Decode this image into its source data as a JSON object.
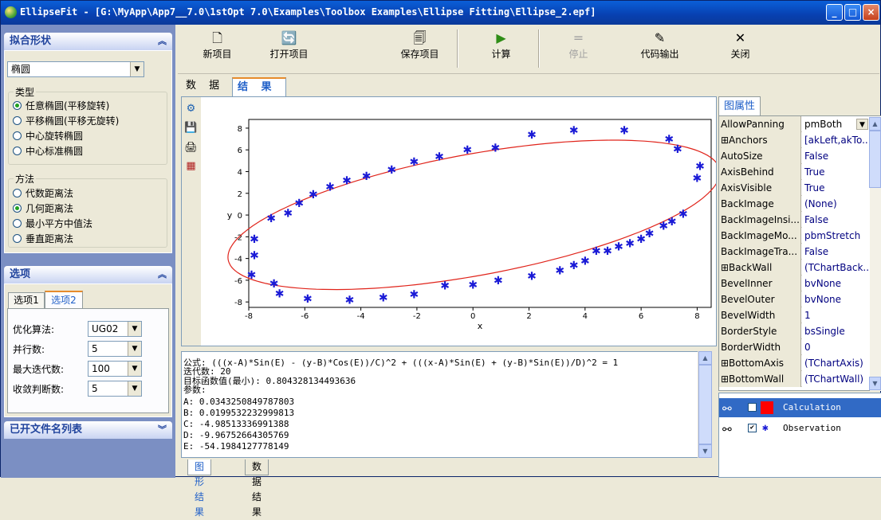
{
  "window": {
    "title": "EllipseFit - [G:\\MyApp\\App7__7.0\\1stOpt 7.0\\Examples\\Toolbox Examples\\Ellipse Fitting\\Ellipse_2.epf]",
    "controls": {
      "minimize": "_",
      "maximize": "□",
      "close": "×"
    }
  },
  "left_panel": {
    "shape_header": "拟合形状",
    "shape_value": "椭圆",
    "type_group": {
      "legend": "类型",
      "options": [
        "任意椭圆(平移旋转)",
        "平移椭圆(平移无旋转)",
        "中心旋转椭圆",
        "中心标准椭圆"
      ],
      "selected": 0
    },
    "method_group": {
      "legend": "方法",
      "options": [
        "代数距离法",
        "几何距离法",
        "最小平方中值法",
        "垂直距离法"
      ],
      "selected": 1
    },
    "options_header": "选项",
    "option_tabs": [
      "选项1",
      "选项2"
    ],
    "options": [
      {
        "label": "优化算法:",
        "value": "UG02"
      },
      {
        "label": "并行数:",
        "value": "5"
      },
      {
        "label": "最大迭代数:",
        "value": "100"
      },
      {
        "label": "收敛判断数:",
        "value": "5"
      }
    ],
    "files_header": "已开文件名列表"
  },
  "toolbar": {
    "buttons": [
      {
        "label": "新项目",
        "icon": "new-file-icon",
        "glyph": "🗋",
        "enabled": true
      },
      {
        "label": "打开项目",
        "icon": "open-project-icon",
        "glyph": "🔄",
        "enabled": true
      },
      {
        "label": "保存项目",
        "icon": "save-project-icon",
        "glyph": "🗐",
        "enabled": true
      },
      {
        "label": "计算",
        "icon": "play-icon",
        "glyph": "▶",
        "enabled": true
      },
      {
        "label": "停止",
        "icon": "stop-icon",
        "glyph": "=",
        "enabled": false
      },
      {
        "label": "代码输出",
        "icon": "edit-icon",
        "glyph": "✎",
        "enabled": true
      },
      {
        "label": "关闭",
        "icon": "close-icon",
        "glyph": "✕",
        "enabled": true
      }
    ]
  },
  "main_tabs": [
    "数 据",
    "结 果"
  ],
  "active_main_tab": 1,
  "chart_data": {
    "type": "scatter",
    "xlabel": "x",
    "ylabel": "y",
    "xlim": [
      -8,
      8.5
    ],
    "ylim": [
      -8.5,
      8.8
    ],
    "xticks": [
      -8,
      -6,
      -4,
      -2,
      0,
      2,
      4,
      6,
      8
    ],
    "yticks": [
      -8,
      -6,
      -4,
      -2,
      0,
      2,
      4,
      6,
      8
    ],
    "series": [
      {
        "name": "Calculation",
        "kind": "line",
        "color": "#e0241b",
        "ellipse": {
          "A": 0.0343250849787803,
          "B": 0.0199532232999813,
          "C": -4.98513336991388,
          "D": -9.96752664305769,
          "E": -54.1984127778149
        }
      },
      {
        "name": "Observation",
        "kind": "points",
        "color": "#1a1ad6",
        "x": [
          -7.9,
          -7.8,
          -7.1,
          -6.9,
          -5.9,
          -4.4,
          -3.2,
          -2.1,
          -1.0,
          0.0,
          0.9,
          2.1,
          3.1,
          3.6,
          4.0,
          4.4,
          4.8,
          5.2,
          5.6,
          6.0,
          6.3,
          6.8,
          7.1,
          7.5,
          8.0,
          8.1,
          7.3,
          7.0,
          5.4,
          3.6,
          2.1,
          0.8,
          -0.2,
          -1.2,
          -2.1,
          -2.9,
          -3.8,
          -4.5,
          -5.1,
          -5.7,
          -6.2,
          -6.6,
          -7.2,
          -7.8
        ],
        "y": [
          -5.5,
          -3.7,
          -6.3,
          -7.2,
          -7.7,
          -7.8,
          -7.6,
          -7.3,
          -6.5,
          -6.4,
          -6.0,
          -5.6,
          -5.1,
          -4.6,
          -4.2,
          -3.3,
          -3.3,
          -2.9,
          -2.6,
          -2.2,
          -1.7,
          -1.0,
          -0.6,
          0.1,
          3.4,
          4.5,
          6.1,
          7.0,
          7.8,
          7.8,
          7.4,
          6.2,
          6.0,
          5.4,
          4.9,
          4.2,
          3.6,
          3.2,
          2.6,
          1.9,
          1.1,
          0.2,
          -0.3,
          -2.2
        ]
      }
    ]
  },
  "results": {
    "formula": "公式: (((x-A)*Sin(E) - (y-B)*Cos(E))/C)^2 + (((x-A)*Sin(E) + (y-B)*Sin(E))/D)^2 = 1",
    "iterations": "迭代数: 20",
    "objective": "目标函数值(最小): 0.804328134493636",
    "params_title": "参数:",
    "params": [
      "A: 0.0343250849787803",
      "B: 0.0199532232999813",
      "C: -4.98513336991388",
      "D: -9.96752664305769",
      "E: -54.1984127778149"
    ]
  },
  "bottom_tabs": [
    "图形结果",
    "数据结果"
  ],
  "properties": {
    "tab": "图属性",
    "rows": [
      {
        "name": "AllowPanning",
        "value": "pmBoth"
      },
      {
        "name": "⊞Anchors",
        "value": "[akLeft,akTo..."
      },
      {
        "name": "AutoSize",
        "value": "False"
      },
      {
        "name": "AxisBehind",
        "value": "True"
      },
      {
        "name": "AxisVisible",
        "value": "True"
      },
      {
        "name": "BackImage",
        "value": "(None)"
      },
      {
        "name": "BackImageInsi...",
        "value": "False"
      },
      {
        "name": "BackImageMo...",
        "value": "pbmStretch"
      },
      {
        "name": "BackImageTra...",
        "value": "False"
      },
      {
        "name": "⊞BackWall",
        "value": "(TChartBack..."
      },
      {
        "name": "BevelInner",
        "value": "bvNone"
      },
      {
        "name": "BevelOuter",
        "value": "bvNone"
      },
      {
        "name": "BevelWidth",
        "value": "1"
      },
      {
        "name": "BorderStyle",
        "value": "bsSingle"
      },
      {
        "name": "BorderWidth",
        "value": "0"
      },
      {
        "name": "⊞BottomAxis",
        "value": "(TChartAxis)"
      },
      {
        "name": "⊞BottomWall",
        "value": "(TChartWall)"
      }
    ]
  },
  "legend": {
    "items": [
      {
        "label": "Calculation",
        "checked": true,
        "swatch": "#ff0000"
      },
      {
        "label": "Observation",
        "checked": true,
        "marker": "✱"
      }
    ]
  }
}
